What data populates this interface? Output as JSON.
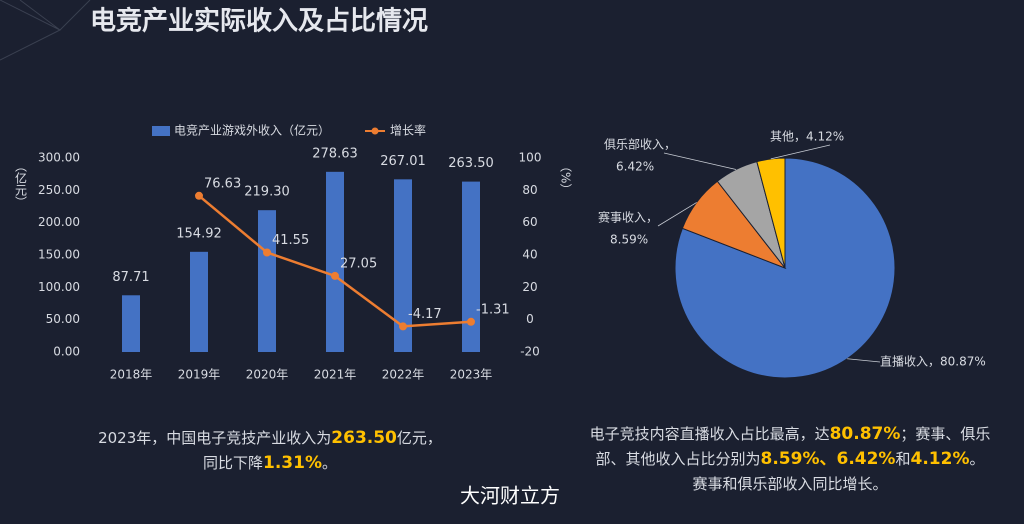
{
  "title": "电竞产业实际收入及占比情况",
  "chart_data": [
    {
      "type": "bar_line",
      "categories": [
        "2018年",
        "2019年",
        "2020年",
        "2021年",
        "2022年",
        "2023年"
      ],
      "series": [
        {
          "name": "电竞产业游戏外收入（亿元）",
          "color": "#4472c4",
          "values": [
            87.71,
            154.92,
            219.3,
            278.63,
            267.01,
            263.5
          ],
          "value_labels": [
            "87.71",
            "154.92",
            "219.30",
            "278.63",
            "267.01",
            "263.50"
          ]
        },
        {
          "name": "增长率",
          "color": "#ed7d31",
          "axis": "y2",
          "values": [
            null,
            76.63,
            41.55,
            27.05,
            -4.17,
            -1.31
          ]
        }
      ],
      "ylabel": "（亿元）",
      "y2label": "（%）",
      "ylim": [
        0,
        300
      ],
      "yticks": [
        {
          "value": 0,
          "label": "0.00"
        },
        {
          "value": 50,
          "label": "50.00"
        },
        {
          "value": 100,
          "label": "100.00"
        },
        {
          "value": 150,
          "label": "150.00"
        },
        {
          "value": 200,
          "label": "200.00"
        },
        {
          "value": 250,
          "label": "250.00"
        },
        {
          "value": 300,
          "label": "300.00"
        }
      ],
      "y2lim": [
        -20,
        100
      ],
      "y2ticks": [
        -20,
        0,
        20,
        40,
        60,
        80,
        100
      ]
    },
    {
      "type": "pie",
      "values": [
        80.87,
        8.59,
        6.42,
        4.12
      ],
      "colors": [
        "#4472c4",
        "#ed7d31",
        "#a5a5a5",
        "#ffc000"
      ],
      "value_labels": [
        [
          "直播收入，80.87%"
        ],
        [
          "赛事收入，",
          "8.59%"
        ],
        [
          "俱乐部收入，",
          "6.42%"
        ],
        [
          "其他，4.12%"
        ]
      ]
    }
  ],
  "notes": {
    "left": [
      [
        "2023年，中国电子竞技产业收入为",
        "263.50",
        "亿元，"
      ],
      [
        "同比下降",
        "1.31%",
        "。"
      ]
    ],
    "right": [
      [
        "电子竞技内容直播收入占比最高，达",
        "80.87%",
        "；赛事、俱乐"
      ],
      [
        "部、其他收入占比分别为",
        "8.59%、6.42%",
        "和",
        "4.12%",
        "。"
      ],
      [
        "赛事和俱乐部收入同比增长。"
      ]
    ]
  },
  "watermark": "大河财立方"
}
